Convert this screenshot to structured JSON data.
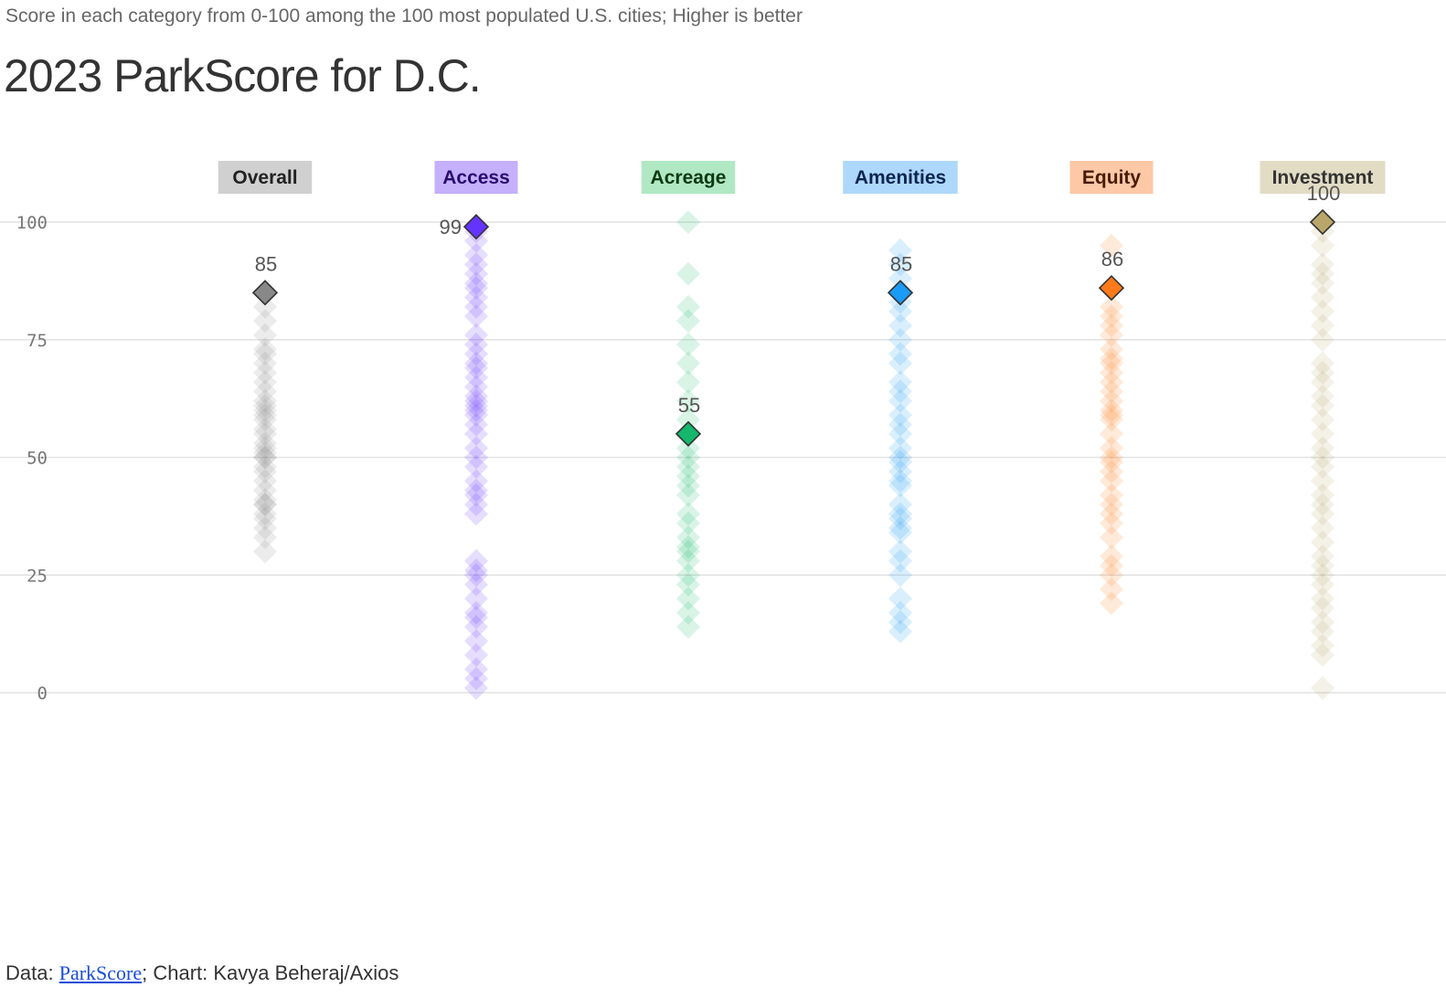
{
  "subtitle": "Score in each category from 0-100 among the 100 most populated U.S. cities; Higher is better",
  "title": "2023 ParkScore for D.C.",
  "footer": {
    "prefix": "Data: ",
    "link": "ParkScore",
    "suffix": "; Chart: Kavya Beheraj/Axios"
  },
  "chart_data": {
    "type": "scatter",
    "title": "2023 ParkScore for D.C.",
    "ylim": [
      0,
      100
    ],
    "yticks": [
      0,
      25,
      50,
      75,
      100
    ],
    "grid": true,
    "highlight_city": "D.C.",
    "categories": [
      {
        "name": "Overall",
        "dc": 85,
        "color": "#888888",
        "label_bg": "#d0d0d0",
        "label_fg": "#222222",
        "others": [
          30,
          33,
          35,
          37,
          38,
          40,
          40,
          41,
          43,
          45,
          47,
          48,
          50,
          50,
          51,
          52,
          53,
          55,
          56,
          58,
          59,
          60,
          61,
          62,
          64,
          66,
          68,
          70,
          72,
          73,
          76,
          79,
          82
        ]
      },
      {
        "name": "Access",
        "dc": 99,
        "color": "#6533ff",
        "label_bg": "#c4b0fb",
        "label_fg": "#2a0a6e",
        "others": [
          1,
          3,
          5,
          8,
          11,
          14,
          16,
          17,
          20,
          23,
          25,
          26,
          28,
          38,
          40,
          42,
          43,
          45,
          48,
          50,
          52,
          55,
          57,
          59,
          60,
          61,
          62,
          63,
          65,
          67,
          69,
          70,
          72,
          74,
          76,
          80,
          82,
          84,
          86,
          87,
          89,
          91,
          93,
          96,
          98
        ]
      },
      {
        "name": "Acreage",
        "dc": 55,
        "color": "#14b86a",
        "label_bg": "#b0e8c4",
        "label_fg": "#0a3a10",
        "others": [
          14,
          17,
          20,
          23,
          25,
          28,
          30,
          31,
          33,
          36,
          38,
          42,
          44,
          46,
          48,
          50,
          52,
          58,
          62,
          66,
          70,
          74,
          79,
          82,
          89,
          100
        ]
      },
      {
        "name": "Amenities",
        "dc": 85,
        "color": "#1a9bf5",
        "label_bg": "#aed8fb",
        "label_fg": "#0a2550",
        "others": [
          13,
          15,
          17,
          20,
          25,
          28,
          30,
          34,
          35,
          37,
          38,
          40,
          44,
          45,
          47,
          49,
          50,
          52,
          55,
          57,
          59,
          62,
          64,
          66,
          70,
          72,
          75,
          78,
          81,
          83,
          88,
          91,
          94
        ]
      },
      {
        "name": "Equity",
        "dc": 86,
        "color": "#ff7a1a",
        "label_bg": "#fdc8a6",
        "label_fg": "#4a1a00",
        "others": [
          19,
          22,
          25,
          27,
          29,
          33,
          36,
          38,
          40,
          42,
          45,
          47,
          49,
          50,
          52,
          55,
          58,
          59,
          60,
          62,
          64,
          66,
          68,
          70,
          71,
          73,
          76,
          78,
          80,
          82,
          95
        ]
      },
      {
        "name": "Investment",
        "dc": 100,
        "color": "#b8a66b",
        "label_bg": "#e2dcc5",
        "label_fg": "#333333",
        "others": [
          1,
          8,
          10,
          13,
          15,
          18,
          20,
          23,
          25,
          27,
          29,
          32,
          35,
          38,
          40,
          42,
          45,
          48,
          50,
          52,
          55,
          58,
          61,
          63,
          66,
          68,
          70,
          75,
          78,
          81,
          84,
          87,
          89,
          91,
          95,
          98
        ]
      }
    ]
  }
}
